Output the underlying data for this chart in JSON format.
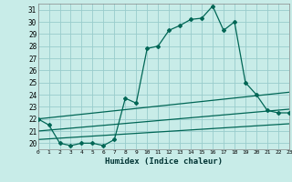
{
  "xlabel": "Humidex (Indice chaleur)",
  "bg_color": "#c8ece8",
  "grid_color": "#99cccc",
  "line_color": "#006655",
  "xmin": 0,
  "xmax": 23,
  "ymin": 19.5,
  "ymax": 31.5,
  "yticks": [
    20,
    21,
    22,
    23,
    24,
    25,
    26,
    27,
    28,
    29,
    30,
    31
  ],
  "main_x": [
    0,
    1,
    2,
    3,
    4,
    5,
    6,
    7,
    8,
    9,
    10,
    11,
    12,
    13,
    14,
    15,
    16,
    17,
    18,
    19,
    20,
    21,
    22,
    23
  ],
  "main_y": [
    22.0,
    21.5,
    20.0,
    19.8,
    20.0,
    20.0,
    19.8,
    20.3,
    23.7,
    23.3,
    27.8,
    28.0,
    29.3,
    29.7,
    30.2,
    30.3,
    31.3,
    29.3,
    30.0,
    25.0,
    24.0,
    22.7,
    22.5,
    22.5
  ],
  "line1_x": [
    0,
    23
  ],
  "line1_y": [
    22.0,
    24.2
  ],
  "line2_x": [
    0,
    23
  ],
  "line2_y": [
    21.0,
    22.8
  ],
  "line3_x": [
    0,
    23
  ],
  "line3_y": [
    20.3,
    21.6
  ]
}
